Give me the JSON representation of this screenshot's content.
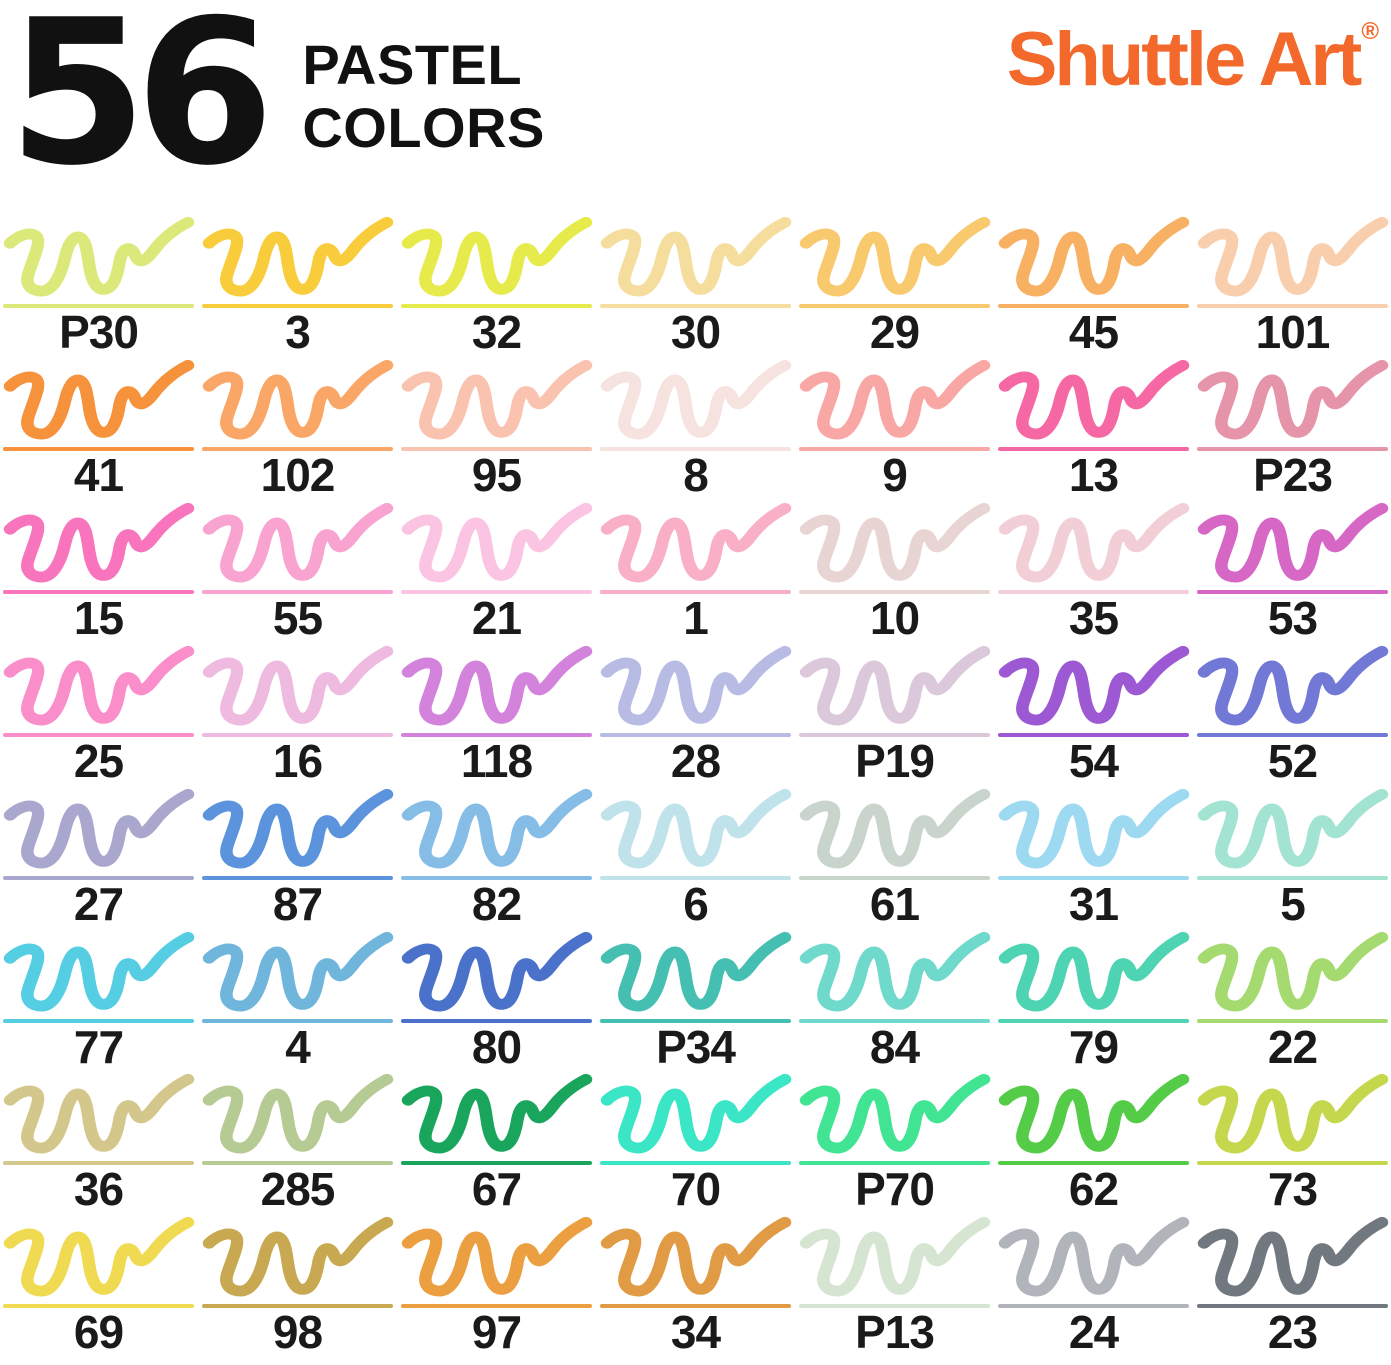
{
  "header": {
    "count": "56",
    "title_line1": "PASTEL",
    "title_line2": "COLORS",
    "brand": "Shuttle Art",
    "brand_registered": "®",
    "brand_color": "#F2692B"
  },
  "chart_data": {
    "type": "table",
    "title": "56 Pastel Colors",
    "rows": 8,
    "cols": 7,
    "swatches": [
      {
        "label": "P30",
        "color": "#DBE97B"
      },
      {
        "label": "3",
        "color": "#F9CC3B"
      },
      {
        "label": "32",
        "color": "#E6EB4B"
      },
      {
        "label": "30",
        "color": "#F5DE9D"
      },
      {
        "label": "29",
        "color": "#F9C96E"
      },
      {
        "label": "45",
        "color": "#F8B062"
      },
      {
        "label": "101",
        "color": "#F9CEAD"
      },
      {
        "label": "41",
        "color": "#F6923C"
      },
      {
        "label": "102",
        "color": "#F9A667"
      },
      {
        "label": "95",
        "color": "#F9C3AF"
      },
      {
        "label": "8",
        "color": "#F6E3DF"
      },
      {
        "label": "9",
        "color": "#F8A7A4"
      },
      {
        "label": "13",
        "color": "#F568A3"
      },
      {
        "label": "P23",
        "color": "#E694A9"
      },
      {
        "label": "15",
        "color": "#F874BC"
      },
      {
        "label": "55",
        "color": "#F9A3D1"
      },
      {
        "label": "21",
        "color": "#FAC4E2"
      },
      {
        "label": "1",
        "color": "#F9B0C6"
      },
      {
        "label": "10",
        "color": "#E9D4D4"
      },
      {
        "label": "35",
        "color": "#F2CFD7"
      },
      {
        "label": "53",
        "color": "#D667C5"
      },
      {
        "label": "25",
        "color": "#F98ECB"
      },
      {
        "label": "16",
        "color": "#EEBADF"
      },
      {
        "label": "118",
        "color": "#D383DC"
      },
      {
        "label": "28",
        "color": "#B8BCE5"
      },
      {
        "label": "P19",
        "color": "#DCC8DB"
      },
      {
        "label": "54",
        "color": "#9C59D3"
      },
      {
        "label": "52",
        "color": "#7278D6"
      },
      {
        "label": "27",
        "color": "#A9A7CD"
      },
      {
        "label": "87",
        "color": "#5B93DC"
      },
      {
        "label": "82",
        "color": "#86BDE6"
      },
      {
        "label": "6",
        "color": "#C0E3EB"
      },
      {
        "label": "61",
        "color": "#C8D4CC"
      },
      {
        "label": "31",
        "color": "#9ED9F2"
      },
      {
        "label": "5",
        "color": "#A3E3D1"
      },
      {
        "label": "77",
        "color": "#55CDE2"
      },
      {
        "label": "4",
        "color": "#70B6DC"
      },
      {
        "label": "80",
        "color": "#4B72CB"
      },
      {
        "label": "P34",
        "color": "#44BFB2"
      },
      {
        "label": "84",
        "color": "#6FD9CB"
      },
      {
        "label": "79",
        "color": "#4ED4B2"
      },
      {
        "label": "22",
        "color": "#A4DA70"
      },
      {
        "label": "36",
        "color": "#D3C78B"
      },
      {
        "label": "285",
        "color": "#B6CB94"
      },
      {
        "label": "67",
        "color": "#19A65C"
      },
      {
        "label": "70",
        "color": "#3BE6C6"
      },
      {
        "label": "P70",
        "color": "#41E493"
      },
      {
        "label": "62",
        "color": "#55CC48"
      },
      {
        "label": "73",
        "color": "#C5D84D"
      },
      {
        "label": "69",
        "color": "#F0DA51"
      },
      {
        "label": "98",
        "color": "#C8A850"
      },
      {
        "label": "97",
        "color": "#EC9F40"
      },
      {
        "label": "34",
        "color": "#E19B45"
      },
      {
        "label": "P13",
        "color": "#D6E5D1"
      },
      {
        "label": "24",
        "color": "#B1B5BB"
      },
      {
        "label": "23",
        "color": "#71787F"
      }
    ]
  }
}
